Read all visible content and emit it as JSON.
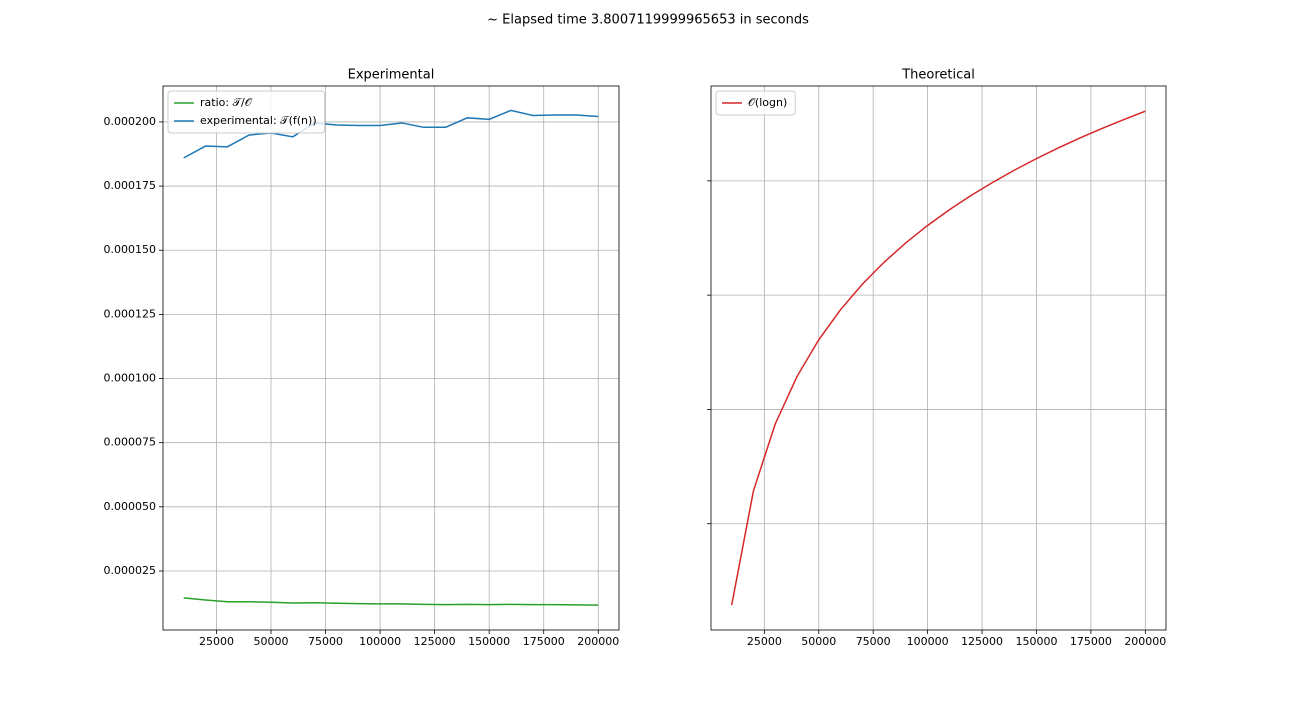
{
  "title": "~ Elapsed time 3.8007119999965653 in seconds",
  "chart_data": [
    {
      "type": "line",
      "title": "Experimental",
      "x": [
        10000,
        20000,
        30000,
        40000,
        50000,
        60000,
        70000,
        80000,
        90000,
        100000,
        110000,
        120000,
        130000,
        140000,
        150000,
        160000,
        170000,
        180000,
        190000,
        200000
      ],
      "series": [
        {
          "name": "ratio: 𝒯/𝒪",
          "color": "#2ca02c",
          "values": [
            1.45e-05,
            1.37e-05,
            1.3e-05,
            1.3e-05,
            1.28e-05,
            1.25e-05,
            1.26e-05,
            1.24e-05,
            1.23e-05,
            1.22e-05,
            1.22e-05,
            1.2e-05,
            1.19e-05,
            1.2e-05,
            1.19e-05,
            1.2e-05,
            1.19e-05,
            1.19e-05,
            1.18e-05,
            1.17e-05
          ]
        },
        {
          "name": "experimental: 𝒯(f(n))",
          "color": "#1f77b4",
          "values": [
            0.000186,
            0.0001906,
            0.0001903,
            0.0001949,
            0.0001957,
            0.0001942,
            0.0001996,
            0.0001988,
            0.0001986,
            0.0001986,
            0.0001996,
            0.0001979,
            0.0001979,
            0.0002016,
            0.000201,
            0.0002045,
            0.0002025,
            0.0002027,
            0.0002027,
            0.0002021
          ]
        }
      ],
      "xlim": [
        500,
        209500
      ],
      "xticks": [
        25000,
        50000,
        75000,
        100000,
        125000,
        150000,
        175000,
        200000
      ],
      "ylim": [
        2e-06,
        0.000214
      ],
      "yticks": [
        {
          "value": 2.5e-05,
          "label": "0.000025"
        },
        {
          "value": 5e-05,
          "label": "0.000050"
        },
        {
          "value": 7.5e-05,
          "label": "0.000075"
        },
        {
          "value": 0.0001,
          "label": "0.000100"
        },
        {
          "value": 0.000125,
          "label": "0.000125"
        },
        {
          "value": 0.00015,
          "label": "0.000150"
        },
        {
          "value": 0.000175,
          "label": "0.000175"
        },
        {
          "value": 0.0002,
          "label": "0.000200"
        }
      ],
      "grid": true,
      "legend": "upper left"
    },
    {
      "type": "line",
      "title": "Theoretical",
      "x": [
        10000,
        20000,
        30000,
        40000,
        50000,
        60000,
        70000,
        80000,
        90000,
        100000,
        110000,
        120000,
        130000,
        140000,
        150000,
        160000,
        170000,
        180000,
        190000,
        200000
      ],
      "series": [
        {
          "name": "𝒪(logn)",
          "color": "#d62728",
          "values": [
            13.2877,
            14.2877,
            14.8727,
            15.2877,
            15.6096,
            15.8727,
            16.0951,
            16.2877,
            16.4576,
            16.6096,
            16.7471,
            16.8727,
            16.9881,
            17.0951,
            17.1946,
            17.2877,
            17.3752,
            17.4576,
            17.5356,
            17.6096
          ]
        }
      ],
      "xlim": [
        500,
        209500
      ],
      "xticks": [
        25000,
        50000,
        75000,
        100000,
        125000,
        150000,
        175000,
        200000
      ],
      "ylim": [
        13.07,
        17.83
      ],
      "yticks": [
        14,
        15,
        16,
        17
      ],
      "ytick_labels": false,
      "grid": true,
      "legend": "upper left"
    }
  ]
}
